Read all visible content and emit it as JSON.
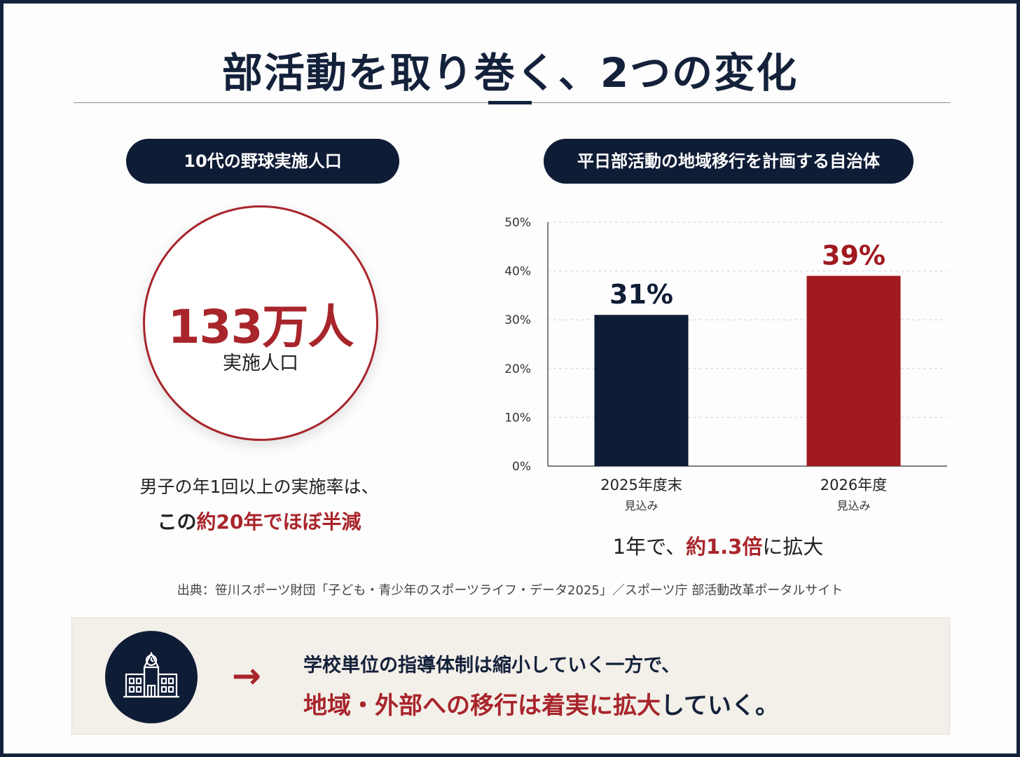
{
  "title": "部活動を取り巻く、2つの変化",
  "left_panel": {
    "pill_label": "10代の野球実施人口",
    "big_number": "133万人",
    "big_number_sub": "実施人口",
    "caption_line1": "男子の年1回以上の実施率は、",
    "caption_line2_prefix": "この",
    "caption_line2_highlight": "約20年でほぼ半減"
  },
  "right_panel": {
    "pill_label": "平日部活動の地域移行を計画する自治体",
    "caption_prefix": "1年で、",
    "caption_highlight": "約1.3倍",
    "caption_suffix": "に拡大"
  },
  "chart_data": {
    "type": "bar",
    "categories": [
      "2025年度末",
      "2026年度"
    ],
    "category_sublabels": [
      "見込み",
      "見込み"
    ],
    "values": [
      31,
      39
    ],
    "value_labels": [
      "31%",
      "39%"
    ],
    "ylim": [
      0,
      50
    ],
    "yticks": [
      0,
      10,
      20,
      30,
      40,
      50
    ],
    "ytick_labels": [
      "0%",
      "10%",
      "20%",
      "30%",
      "40%",
      "50%"
    ],
    "bar_colors": [
      "#0f1c36",
      "#a01a20"
    ],
    "value_label_colors": [
      "#0f1c36",
      "#a01a20"
    ],
    "grid": true,
    "title": "",
    "xlabel": "",
    "ylabel": ""
  },
  "source": "出典：笹川スポーツ財団「子ども・青少年のスポーツライフ・データ2025」／スポーツ庁  部活動改革ポータルサイト",
  "bottom": {
    "icon": "school-building-icon",
    "arrow": "→",
    "line1": "学校単位の指導体制は縮小していく一方で、",
    "line2_highlight": "地域・外部への移行は着実に拡大",
    "line2_suffix": "していく。"
  },
  "colors": {
    "navy": "#0f1c36",
    "red": "#a8252b",
    "background": "#fdfdfd",
    "box": "#f3efe9"
  }
}
